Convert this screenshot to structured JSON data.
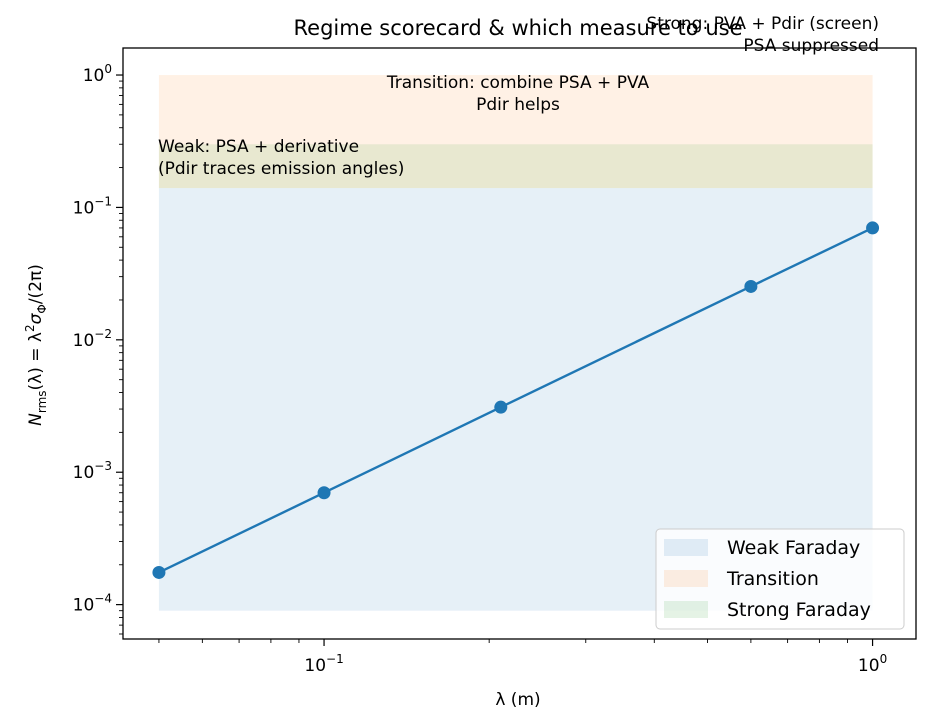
{
  "chart_data": {
    "type": "line",
    "title": "Regime scorecard & which measure to use",
    "xlabel": "λ (m)",
    "ylabel_parts": [
      "N",
      "rms",
      "(λ) = λ",
      "2",
      "σ",
      "Φ",
      "/(2π)"
    ],
    "x_scale": "log",
    "y_scale": "log",
    "xlim": [
      0.043,
      1.2
    ],
    "ylim": [
      5.5e-05,
      1.6
    ],
    "x_ticks": [
      {
        "value": 0.1,
        "base": "10",
        "exp": "−1"
      },
      {
        "value": 1,
        "base": "10",
        "exp": "0"
      }
    ],
    "y_ticks": [
      {
        "value": 0.0001,
        "base": "10",
        "exp": "−4"
      },
      {
        "value": 0.001,
        "base": "10",
        "exp": "−3"
      },
      {
        "value": 0.01,
        "base": "10",
        "exp": "−2"
      },
      {
        "value": 0.1,
        "base": "10",
        "exp": "−1"
      },
      {
        "value": 1,
        "base": "10",
        "exp": "0"
      }
    ],
    "grid": false,
    "x": [
      0.05,
      0.1,
      0.21,
      0.6,
      1.0
    ],
    "y": [
      0.000175,
      0.0007,
      0.0031,
      0.0253,
      0.07
    ],
    "line_color": "#1f77b4",
    "bands": [
      {
        "name": "Weak Faraday",
        "x0": 0.05,
        "x1": 1.0,
        "y0": 9e-05,
        "y1": 0.14,
        "color": "#1f77b4"
      },
      {
        "name": "Transition",
        "x0": 0.05,
        "x1": 1.0,
        "y0": 0.14,
        "y1": 1.0,
        "color": "#ff7f0e"
      },
      {
        "name": "Strong Faraday",
        "x0": 0.05,
        "x1": 1.0,
        "y0": 0.14,
        "y1": 0.3,
        "color": "#2ca02c"
      }
    ],
    "annotations": {
      "strong": "Strong: PVA + Pdir (screen)\nPSA suppressed",
      "transition": "Transition: combine PSA + PVA\nPdir helps",
      "weak": "Weak: PSA + derivative\n(Pdir traces emission angles)"
    },
    "legend": {
      "placement": "lower-right",
      "entries": [
        "Weak Faraday",
        "Transition",
        "Strong Faraday"
      ]
    }
  }
}
